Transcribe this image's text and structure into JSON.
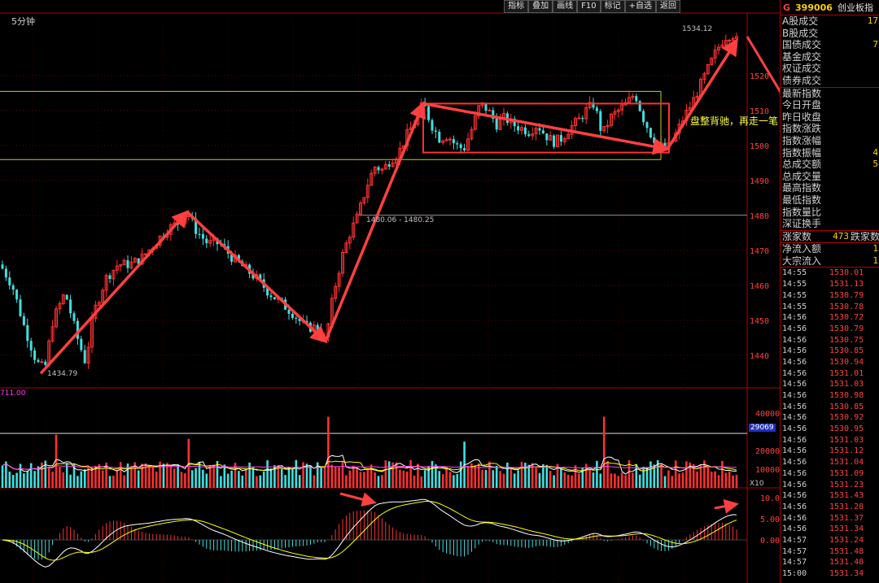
{
  "toolbar": [
    "指标",
    "叠加",
    "画线",
    "F10",
    "标记",
    "+自选",
    "返回"
  ],
  "period_label": "5分钟",
  "annotation_text": "盘整背驰，再走一笔",
  "low_label": "1434.79",
  "high_label": "1534.12",
  "range_label": "1480.06 - 1480.25",
  "vol_label": "711.00",
  "vol_current": "29069",
  "vol_scale": "X10",
  "colors": {
    "up": "#ff3030",
    "down": "#40e0e0",
    "arrow": "#ff4040",
    "box": "#ff3030",
    "hline": "#c8c820",
    "ma1": "#ffffff",
    "ma2": "#ffff00",
    "ma3": "#ff40ff"
  },
  "chart_data": {
    "type": "candlestick",
    "price_axis": [
      1440,
      1450,
      1460,
      1470,
      1480,
      1490,
      1500,
      1510,
      1520
    ],
    "ylim": [
      1432,
      1538
    ],
    "volume_axis": [
      10000,
      20000,
      40000
    ],
    "macd_axis": [
      0.0,
      5.0,
      10.0
    ],
    "low": 1434.79,
    "high": 1534.12,
    "horizontal_levels": [
      1515.5,
      1496.0
    ],
    "zhongshu_box": {
      "top": 1512.0,
      "bottom": 1498.0
    },
    "arrow_waypoints": [
      [
        50,
        1434.8
      ],
      [
        230,
        1481.0
      ],
      [
        400,
        1444.0
      ],
      [
        520,
        1512.0
      ],
      [
        820,
        1499.0
      ],
      [
        905,
        1530.0
      ]
    ],
    "close_path": [
      [
        0,
        1466
      ],
      [
        15,
        1460
      ],
      [
        30,
        1448
      ],
      [
        45,
        1438
      ],
      [
        55,
        1436
      ],
      [
        65,
        1450
      ],
      [
        80,
        1458
      ],
      [
        95,
        1445
      ],
      [
        105,
        1438
      ],
      [
        115,
        1452
      ],
      [
        130,
        1462
      ],
      [
        145,
        1466
      ],
      [
        160,
        1466
      ],
      [
        175,
        1468
      ],
      [
        190,
        1472
      ],
      [
        205,
        1476
      ],
      [
        220,
        1478
      ],
      [
        230,
        1481
      ],
      [
        240,
        1476
      ],
      [
        255,
        1472
      ],
      [
        270,
        1472
      ],
      [
        285,
        1468
      ],
      [
        300,
        1465
      ],
      [
        315,
        1462
      ],
      [
        330,
        1458
      ],
      [
        345,
        1455
      ],
      [
        360,
        1452
      ],
      [
        375,
        1448
      ],
      [
        390,
        1448
      ],
      [
        400,
        1444
      ],
      [
        410,
        1458
      ],
      [
        420,
        1468
      ],
      [
        430,
        1475
      ],
      [
        440,
        1480
      ],
      [
        450,
        1488
      ],
      [
        460,
        1494
      ],
      [
        470,
        1493
      ],
      [
        480,
        1496
      ],
      [
        490,
        1498
      ],
      [
        500,
        1503
      ],
      [
        510,
        1507
      ],
      [
        520,
        1512
      ],
      [
        530,
        1506
      ],
      [
        540,
        1502
      ],
      [
        550,
        1503
      ],
      [
        560,
        1500
      ],
      [
        570,
        1499
      ],
      [
        580,
        1505
      ],
      [
        590,
        1512
      ],
      [
        600,
        1510
      ],
      [
        610,
        1506
      ],
      [
        620,
        1508
      ],
      [
        630,
        1506
      ],
      [
        640,
        1505
      ],
      [
        650,
        1504
      ],
      [
        660,
        1506
      ],
      [
        670,
        1503
      ],
      [
        680,
        1501
      ],
      [
        690,
        1502
      ],
      [
        700,
        1505
      ],
      [
        710,
        1507
      ],
      [
        720,
        1510
      ],
      [
        730,
        1512
      ],
      [
        740,
        1503
      ],
      [
        750,
        1508
      ],
      [
        760,
        1510
      ],
      [
        770,
        1512
      ],
      [
        780,
        1515
      ],
      [
        790,
        1508
      ],
      [
        800,
        1503
      ],
      [
        810,
        1500
      ],
      [
        820,
        1499
      ],
      [
        830,
        1503
      ],
      [
        840,
        1508
      ],
      [
        850,
        1512
      ],
      [
        860,
        1517
      ],
      [
        870,
        1522
      ],
      [
        880,
        1527
      ],
      [
        890,
        1531
      ],
      [
        900,
        1532
      ],
      [
        905,
        1530
      ]
    ],
    "ticks": [
      [
        "14:55",
        "1530.01"
      ],
      [
        "14:55",
        "1531.13"
      ],
      [
        "14:55",
        "1530.79"
      ],
      [
        "14:55",
        "1530.78"
      ],
      [
        "14:56",
        "1530.72"
      ],
      [
        "14:56",
        "1530.79"
      ],
      [
        "14:56",
        "1530.75"
      ],
      [
        "14:56",
        "1530.85"
      ],
      [
        "14:56",
        "1530.94"
      ],
      [
        "14:56",
        "1531.01"
      ],
      [
        "14:56",
        "1531.03"
      ],
      [
        "14:56",
        "1530.98"
      ],
      [
        "14:56",
        "1530.85"
      ],
      [
        "14:56",
        "1530.92"
      ],
      [
        "14:56",
        "1530.95"
      ],
      [
        "14:56",
        "1531.03"
      ],
      [
        "14:56",
        "1531.12"
      ],
      [
        "14:56",
        "1531.04"
      ],
      [
        "14:56",
        "1531.09"
      ],
      [
        "14:56",
        "1531.23"
      ],
      [
        "14:56",
        "1531.43"
      ],
      [
        "14:56",
        "1531.28"
      ],
      [
        "14:56",
        "1531.37"
      ],
      [
        "14:56",
        "1531.34"
      ],
      [
        "14:57",
        "1531.24"
      ],
      [
        "14:57",
        "1531.48"
      ],
      [
        "14:57",
        "1531.48"
      ],
      [
        "15:00",
        "1531.34"
      ]
    ]
  },
  "side": {
    "code": "399006",
    "name": "创业板指",
    "g": "G",
    "trade_rows": [
      {
        "label": "A股成交",
        "value": "17"
      },
      {
        "label": "B股成交",
        "value": ""
      },
      {
        "label": "国债成交",
        "value": "7"
      },
      {
        "label": "基金成交",
        "value": ""
      },
      {
        "label": "权证成交",
        "value": ""
      },
      {
        "label": "债券成交",
        "value": ""
      }
    ],
    "index_rows": [
      {
        "label": "最新指数",
        "value": ""
      },
      {
        "label": "今日开盘",
        "value": ""
      },
      {
        "label": "昨日收盘",
        "value": ""
      },
      {
        "label": "指数涨跌",
        "value": ""
      },
      {
        "label": "指数涨幅",
        "value": ""
      },
      {
        "label": "指数振幅",
        "value": "4"
      },
      {
        "label": "总成交额",
        "value": "5"
      },
      {
        "label": "总成交量",
        "value": ""
      },
      {
        "label": "最高指数",
        "value": ""
      },
      {
        "label": "最低指数",
        "value": ""
      },
      {
        "label": "指数量比",
        "value": ""
      },
      {
        "label": "深证换手",
        "value": ""
      }
    ],
    "rise_label": "涨家数",
    "rise_value": "473",
    "fall_label": "跌家数",
    "flow_rows": [
      {
        "label": "净流入额",
        "value": "1"
      },
      {
        "label": "大宗流入",
        "value": "1"
      }
    ]
  }
}
